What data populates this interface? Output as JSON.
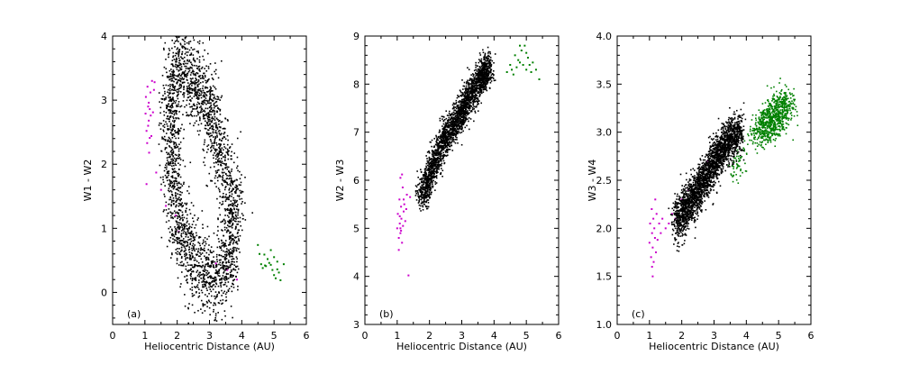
{
  "chart_data": [
    {
      "type": "scatter",
      "panel_label": "(a)",
      "xlabel": "Heliocentric Distance (AU)",
      "ylabel": "W1 - W2",
      "xlim": [
        0,
        6
      ],
      "ylim": [
        -0.5,
        4
      ],
      "xticks": [
        "0",
        "1",
        "2",
        "3",
        "4",
        "5",
        "6"
      ],
      "yticks": [
        "0",
        "1",
        "2",
        "3",
        "4"
      ],
      "ytick_values": [
        0,
        1,
        2,
        3,
        4
      ],
      "grid": false,
      "legend": "none",
      "series": [
        {
          "color": "#cc00cc",
          "points": [
            [
              1.02,
              2.79
            ],
            [
              1.03,
              3.05
            ],
            [
              1.05,
              2.52
            ],
            [
              1.07,
              2.33
            ],
            [
              1.08,
              3.21
            ],
            [
              1.1,
              2.9
            ],
            [
              1.12,
              2.68
            ],
            [
              1.13,
              2.18
            ],
            [
              1.15,
              2.86
            ],
            [
              1.17,
              3.12
            ],
            [
              1.18,
              2.76
            ],
            [
              1.2,
              2.44
            ],
            [
              1.05,
              1.69
            ],
            [
              1.22,
              3.3
            ],
            [
              1.25,
              2.81
            ],
            [
              1.3,
              3.28
            ],
            [
              1.1,
              2.6
            ],
            [
              1.12,
              2.96
            ],
            [
              1.15,
              2.41
            ],
            [
              1.28,
              3.16
            ],
            [
              1.35,
              1.87
            ],
            [
              1.5,
              1.6
            ],
            [
              1.65,
              1.35
            ],
            [
              1.95,
              1.2
            ],
            [
              2.05,
              0.95
            ],
            [
              3.2,
              0.45
            ],
            [
              3.55,
              0.35
            ],
            [
              3.85,
              0.2
            ]
          ]
        },
        {
          "color": "#008000",
          "points": [
            [
              4.5,
              0.74
            ],
            [
              4.6,
              0.44
            ],
            [
              4.65,
              0.38
            ],
            [
              4.7,
              0.59
            ],
            [
              4.75,
              0.41
            ],
            [
              4.8,
              0.52
            ],
            [
              4.85,
              0.46
            ],
            [
              4.9,
              0.66
            ],
            [
              4.95,
              0.35
            ],
            [
              5.0,
              0.27
            ],
            [
              5.05,
              0.22
            ],
            [
              5.1,
              0.48
            ],
            [
              5.15,
              0.31
            ],
            [
              5.2,
              0.19
            ],
            [
              5.3,
              0.44
            ],
            [
              4.9,
              0.43
            ],
            [
              5.0,
              0.55
            ],
            [
              4.55,
              0.6
            ],
            [
              5.1,
              0.36
            ],
            [
              4.72,
              0.42
            ]
          ]
        },
        {
          "color": "#000000",
          "density": {
            "path": [
              [
                1.9,
                3.6
              ],
              [
                2.3,
                3.4
              ],
              [
                2.7,
                3.2
              ],
              [
                3.1,
                2.7
              ],
              [
                3.5,
                1.9
              ],
              [
                3.8,
                1.3
              ],
              [
                3.6,
                0.5
              ],
              [
                3.1,
                0.2
              ],
              [
                2.5,
                0.4
              ],
              [
                2.1,
                1.0
              ],
              [
                1.85,
                1.7
              ],
              [
                1.8,
                2.6
              ],
              [
                1.85,
                3.3
              ]
            ],
            "spread": [
              0.15,
              0.32
            ],
            "count": 2600
          }
        }
      ]
    },
    {
      "type": "scatter",
      "panel_label": "(b)",
      "xlabel": "Heliocentric Distance (AU)",
      "ylabel": "W2 - W3",
      "xlim": [
        0,
        6
      ],
      "ylim": [
        3,
        9
      ],
      "xticks": [
        "0",
        "1",
        "2",
        "3",
        "4",
        "5",
        "6"
      ],
      "yticks": [
        "3",
        "4",
        "5",
        "6",
        "7",
        "8",
        "9"
      ],
      "ytick_values": [
        3,
        4,
        5,
        6,
        7,
        8,
        9
      ],
      "grid": false,
      "legend": "none",
      "series": [
        {
          "color": "#cc00cc",
          "points": [
            [
              1.0,
              5.0
            ],
            [
              1.02,
              5.3
            ],
            [
              1.05,
              4.8
            ],
            [
              1.07,
              5.6
            ],
            [
              1.08,
              5.1
            ],
            [
              1.1,
              4.9
            ],
            [
              1.12,
              5.45
            ],
            [
              1.13,
              5.2
            ],
            [
              1.15,
              4.7
            ],
            [
              1.17,
              5.85
            ],
            [
              1.18,
              5.05
            ],
            [
              1.2,
              5.35
            ],
            [
              1.1,
              6.05
            ],
            [
              1.15,
              6.12
            ],
            [
              1.05,
              4.55
            ],
            [
              1.22,
              5.5
            ],
            [
              1.25,
              5.15
            ],
            [
              1.3,
              5.7
            ],
            [
              1.35,
              4.02
            ],
            [
              1.1,
              5.0
            ],
            [
              1.12,
              4.95
            ],
            [
              1.08,
              5.25
            ],
            [
              1.2,
              5.6
            ],
            [
              1.28,
              5.4
            ],
            [
              1.4,
              5.65
            ]
          ]
        },
        {
          "color": "#008000",
          "points": [
            [
              4.5,
              8.4
            ],
            [
              4.55,
              8.3
            ],
            [
              4.6,
              8.2
            ],
            [
              4.65,
              8.6
            ],
            [
              4.7,
              8.35
            ],
            [
              4.75,
              8.5
            ],
            [
              4.8,
              8.45
            ],
            [
              4.85,
              8.7
            ],
            [
              4.9,
              8.4
            ],
            [
              4.95,
              8.8
            ],
            [
              5.0,
              8.3
            ],
            [
              5.05,
              8.55
            ],
            [
              5.1,
              8.4
            ],
            [
              5.15,
              8.25
            ],
            [
              5.2,
              8.45
            ],
            [
              5.3,
              8.3
            ],
            [
              5.4,
              8.1
            ],
            [
              4.8,
              8.8
            ],
            [
              5.0,
              8.65
            ],
            [
              4.4,
              8.25
            ]
          ]
        },
        {
          "color": "#000000",
          "density": {
            "path": [
              [
                1.75,
                5.6
              ],
              [
                2.1,
                6.3
              ],
              [
                2.5,
                6.9
              ],
              [
                2.9,
                7.3
              ],
              [
                3.2,
                7.7
              ],
              [
                3.6,
                8.1
              ],
              [
                3.85,
                8.4
              ]
            ],
            "spread": [
              0.1,
              0.16
            ],
            "count": 2400
          }
        }
      ]
    },
    {
      "type": "scatter",
      "panel_label": "(c)",
      "xlabel": "Heliocentric Distance (AU)",
      "ylabel": "W3 - W4",
      "xlim": [
        0,
        6
      ],
      "ylim": [
        1.0,
        4.0
      ],
      "xticks": [
        "0",
        "1",
        "2",
        "3",
        "4",
        "5",
        "6"
      ],
      "yticks": [
        "1.0",
        "1.5",
        "2.0",
        "2.5",
        "3.0",
        "3.5",
        "4.0"
      ],
      "ytick_values": [
        1.0,
        1.5,
        2.0,
        2.5,
        3.0,
        3.5,
        4.0
      ],
      "grid": false,
      "legend": "none",
      "series": [
        {
          "color": "#cc00cc",
          "points": [
            [
              1.0,
              1.85
            ],
            [
              1.02,
              2.05
            ],
            [
              1.05,
              1.7
            ],
            [
              1.07,
              2.2
            ],
            [
              1.08,
              1.95
            ],
            [
              1.1,
              1.8
            ],
            [
              1.12,
              2.1
            ],
            [
              1.13,
              1.65
            ],
            [
              1.15,
              2.0
            ],
            [
              1.17,
              1.9
            ],
            [
              1.18,
              2.3
            ],
            [
              1.2,
              1.75
            ],
            [
              1.1,
              1.5
            ],
            [
              1.22,
              2.15
            ],
            [
              1.25,
              1.88
            ],
            [
              1.3,
              2.05
            ],
            [
              1.35,
              1.95
            ],
            [
              1.4,
              2.1
            ],
            [
              1.5,
              2.0
            ],
            [
              1.6,
              2.05
            ],
            [
              1.7,
              2.15
            ],
            [
              1.8,
              2.1
            ],
            [
              2.0,
              2.3
            ],
            [
              2.2,
              2.4
            ],
            [
              2.5,
              2.5
            ],
            [
              2.8,
              2.7
            ],
            [
              3.2,
              2.8
            ],
            [
              1.08,
              1.6
            ]
          ]
        },
        {
          "color": "#008000",
          "points": [],
          "density": {
            "path": [
              [
                4.4,
                3.0
              ],
              [
                4.7,
                3.1
              ],
              [
                5.0,
                3.2
              ],
              [
                5.3,
                3.3
              ]
            ],
            "spread": [
              0.16,
              0.1
            ],
            "count": 750
          }
        },
        {
          "color": "#008000",
          "points": [],
          "density": {
            "path": [
              [
                3.6,
                2.6
              ],
              [
                4.0,
                2.8
              ]
            ],
            "spread": [
              0.12,
              0.08
            ],
            "count": 60
          }
        },
        {
          "color": "#000000",
          "density": {
            "path": [
              [
                1.85,
                2.05
              ],
              [
                2.2,
                2.25
              ],
              [
                2.6,
                2.45
              ],
              [
                3.0,
                2.7
              ],
              [
                3.4,
                2.9
              ],
              [
                3.8,
                3.0
              ]
            ],
            "spread": [
              0.1,
              0.11
            ],
            "count": 2400
          }
        }
      ]
    }
  ]
}
